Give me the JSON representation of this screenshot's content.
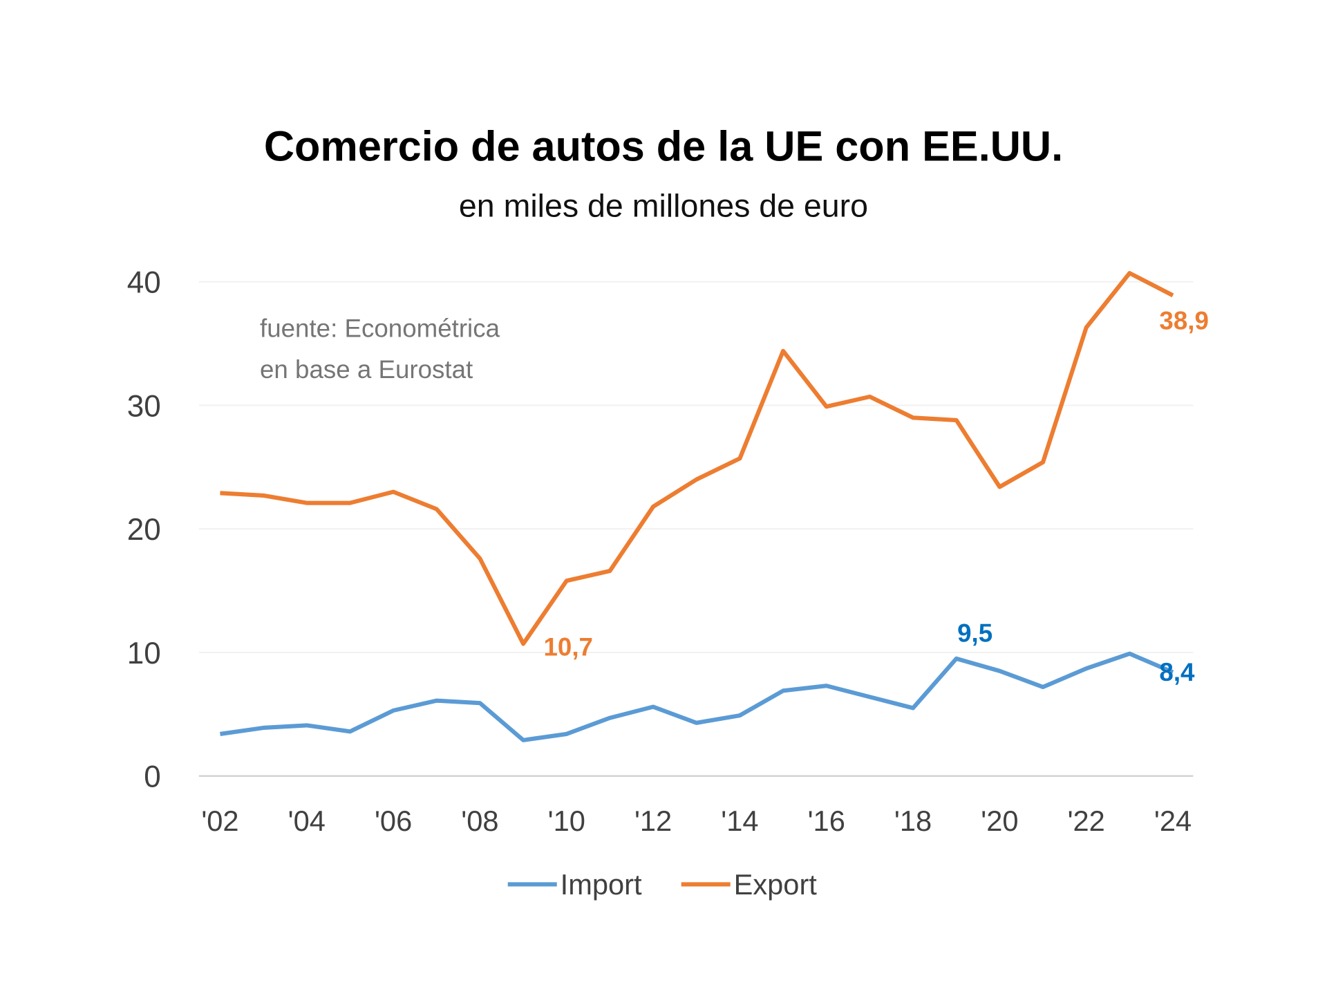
{
  "chart_data": {
    "type": "line",
    "title": "Comercio de autos de la UE con EE.UU.",
    "subtitle": "en miles de millones de euro",
    "annotation": [
      "fuente: Econométrica",
      "en base a Eurostat"
    ],
    "x": [
      2002,
      2003,
      2004,
      2005,
      2006,
      2007,
      2008,
      2009,
      2010,
      2011,
      2012,
      2013,
      2014,
      2015,
      2016,
      2017,
      2018,
      2019,
      2020,
      2021,
      2022,
      2023,
      2024
    ],
    "x_tick_labels": [
      "'02",
      "'04",
      "'06",
      "'08",
      "'10",
      "'12",
      "'14",
      "'16",
      "'18",
      "'20",
      "'22",
      "'24"
    ],
    "x_tick_values": [
      2002,
      2004,
      2006,
      2008,
      2010,
      2012,
      2014,
      2016,
      2018,
      2020,
      2022,
      2024
    ],
    "y_ticks": [
      0,
      10,
      20,
      30,
      40
    ],
    "ylim": [
      0,
      40
    ],
    "grid": "horizontal",
    "legend_position": "bottom",
    "series": [
      {
        "name": "Import",
        "color": "#5B9BD5",
        "label_color": "#0070C0",
        "values": [
          3.4,
          3.9,
          4.1,
          3.6,
          5.3,
          6.1,
          5.9,
          2.9,
          3.4,
          4.7,
          5.6,
          4.3,
          4.9,
          6.9,
          7.3,
          6.4,
          5.5,
          9.5,
          8.5,
          7.2,
          8.7,
          9.9,
          8.4
        ],
        "data_labels": [
          {
            "x": 2019,
            "text": "9,5"
          },
          {
            "x": 2024,
            "text": "8,4"
          }
        ]
      },
      {
        "name": "Export",
        "color": "#ED7D31",
        "label_color": "#ED7D31",
        "values": [
          22.9,
          22.7,
          22.1,
          22.1,
          23.0,
          21.6,
          17.6,
          10.7,
          15.8,
          16.6,
          21.8,
          24.0,
          25.7,
          34.4,
          29.9,
          30.7,
          29.0,
          28.8,
          23.4,
          25.4,
          36.3,
          40.7,
          38.9
        ],
        "data_labels": [
          {
            "x": 2009,
            "text": "10,7"
          },
          {
            "x": 2024,
            "text": "38,9"
          }
        ]
      }
    ]
  }
}
